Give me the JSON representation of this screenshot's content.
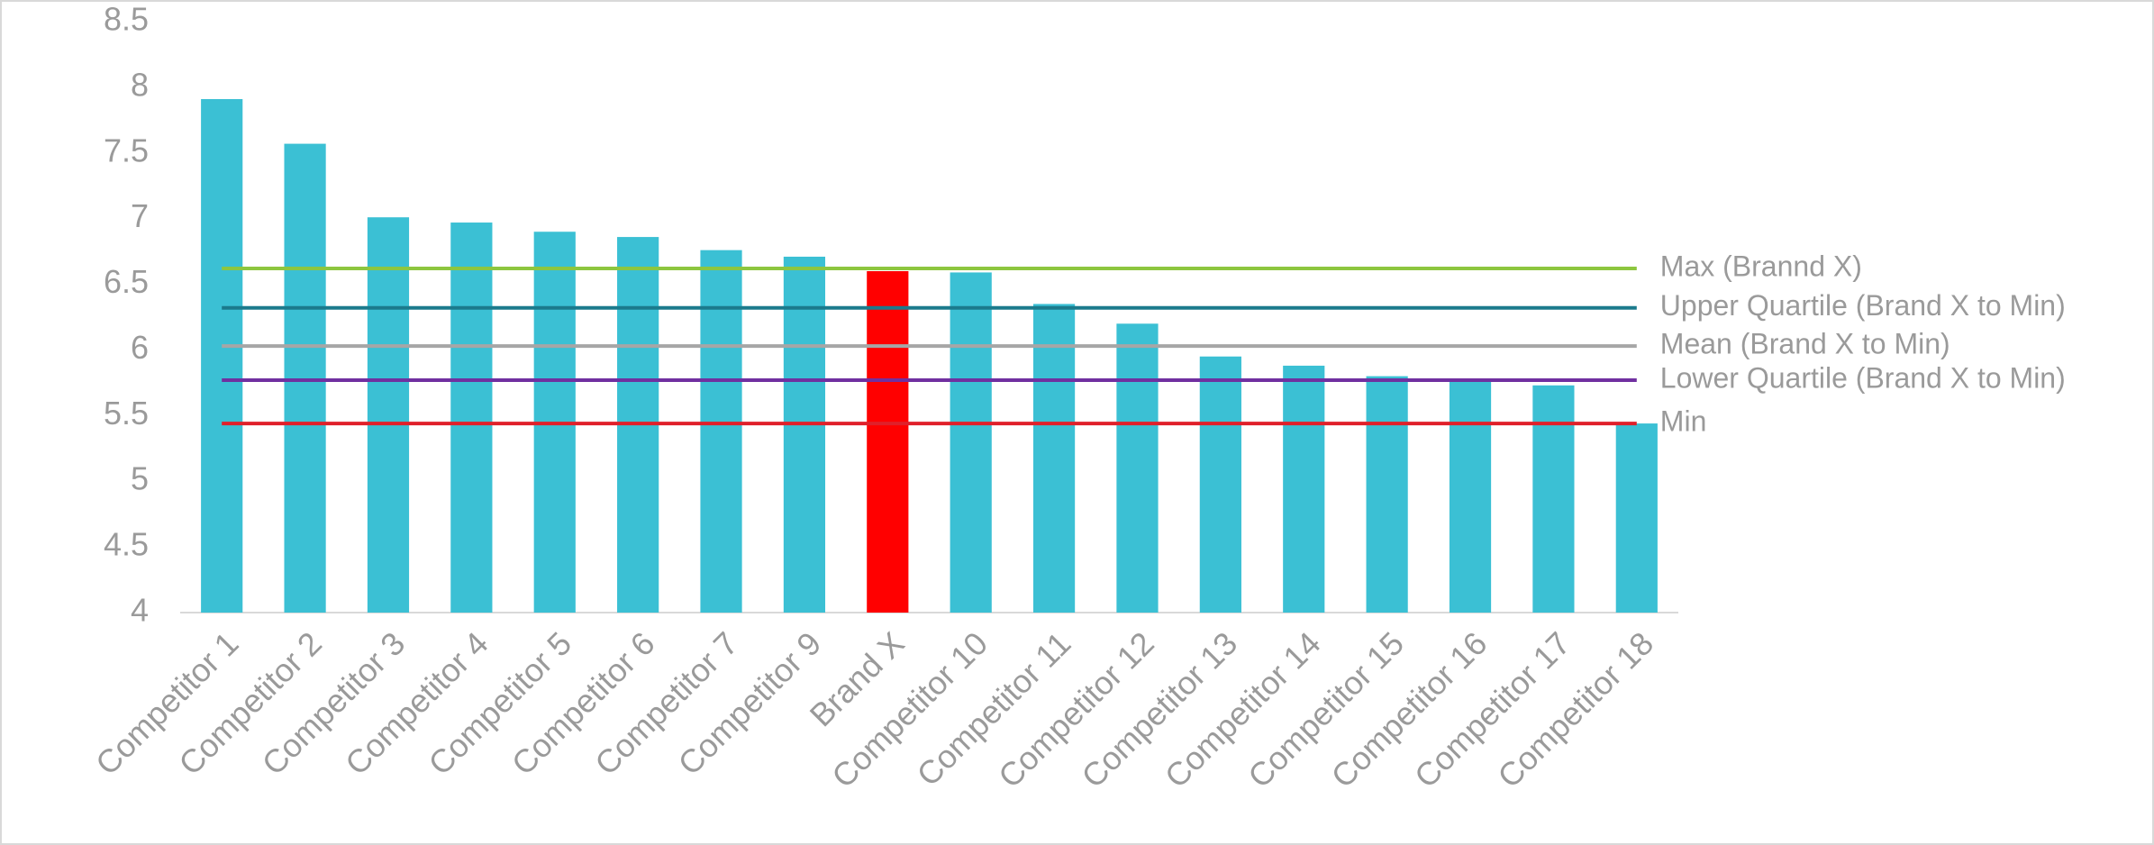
{
  "chart_data": {
    "type": "bar",
    "categories": [
      "Competitor 1",
      "Competitor 2",
      "Competitor 3",
      "Competitor 4",
      "Competitor 5",
      "Competitor 6",
      "Competitor 7",
      "Competitor 9",
      "Brand X",
      "Competitor 10",
      "Competitor 11",
      "Competitor 12",
      "Competitor 13",
      "Competitor 14",
      "Competitor 15",
      "Competitor 16",
      "Competitor 17",
      "Competitor 18"
    ],
    "values": [
      7.91,
      7.57,
      7.01,
      6.97,
      6.9,
      6.86,
      6.76,
      6.71,
      6.6,
      6.59,
      6.35,
      6.2,
      5.95,
      5.88,
      5.8,
      5.77,
      5.73,
      5.44
    ],
    "colors": [
      "#3bc0d4",
      "#3bc0d4",
      "#3bc0d4",
      "#3bc0d4",
      "#3bc0d4",
      "#3bc0d4",
      "#3bc0d4",
      "#3bc0d4",
      "#ff0000",
      "#3bc0d4",
      "#3bc0d4",
      "#3bc0d4",
      "#3bc0d4",
      "#3bc0d4",
      "#3bc0d4",
      "#3bc0d4",
      "#3bc0d4",
      "#3bc0d4"
    ],
    "ylim": [
      4,
      8.5
    ],
    "yticks": [
      4,
      4.5,
      5,
      5.5,
      6,
      6.5,
      7,
      7.5,
      8,
      8.5
    ],
    "grid": false,
    "reference_lines": [
      {
        "name": "Max (Brannd X)",
        "color": "#8dc63f",
        "value": 6.62
      },
      {
        "name": "Upper Quartile (Brand X to Min)",
        "color": "#1b7a8c",
        "value": 6.32
      },
      {
        "name": "Mean (Brand X to Min)",
        "color": "#a6a6a6",
        "value": 6.03
      },
      {
        "name": "Lower Quartile (Brand X to Min)",
        "color": "#7030a0",
        "value": 5.77
      },
      {
        "name": "Min",
        "color": "#e0202a",
        "value": 5.44
      }
    ]
  }
}
